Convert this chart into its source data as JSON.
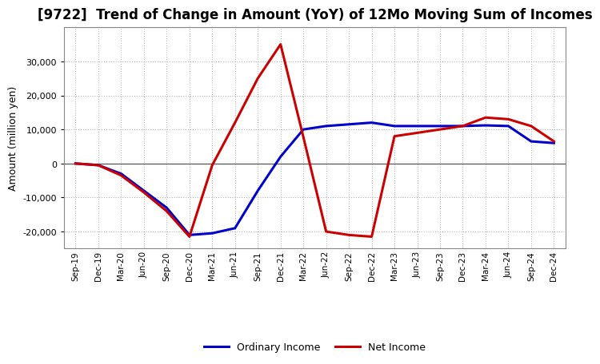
{
  "title": "[9722]  Trend of Change in Amount (YoY) of 12Mo Moving Sum of Incomes",
  "ylabel": "Amount (million yen)",
  "background_color": "#ffffff",
  "grid_color": "#aaaaaa",
  "xlabels": [
    "Sep-19",
    "Dec-19",
    "Mar-20",
    "Jun-20",
    "Sep-20",
    "Dec-20",
    "Mar-21",
    "Jun-21",
    "Sep-21",
    "Dec-21",
    "Mar-22",
    "Jun-22",
    "Sep-22",
    "Dec-22",
    "Mar-23",
    "Jun-23",
    "Sep-23",
    "Dec-23",
    "Mar-24",
    "Jun-24",
    "Sep-24",
    "Dec-24"
  ],
  "ordinary_income": [
    0,
    -500,
    -3000,
    -8000,
    -13000,
    -21000,
    -20500,
    -19000,
    -8000,
    2000,
    10000,
    11000,
    11500,
    12000,
    11000,
    11000,
    11000,
    11000,
    11200,
    11000,
    6500,
    6000
  ],
  "net_income": [
    0,
    -500,
    -3500,
    -8500,
    -14000,
    -21500,
    -500,
    12000,
    25000,
    35000,
    7800,
    -20000,
    -21000,
    -21500,
    8000,
    9000,
    10000,
    11000,
    13500,
    13000,
    11000,
    6500
  ],
  "ordinary_color": "#0000cc",
  "net_color": "#cc0000",
  "ylim": [
    -25000,
    40000
  ],
  "yticks": [
    -20000,
    -10000,
    0,
    10000,
    20000,
    30000
  ],
  "line_width": 2.2,
  "title_fontsize": 12,
  "ylabel_fontsize": 9,
  "xtick_fontsize": 7.5,
  "ytick_fontsize": 8,
  "legend_fontsize": 9
}
